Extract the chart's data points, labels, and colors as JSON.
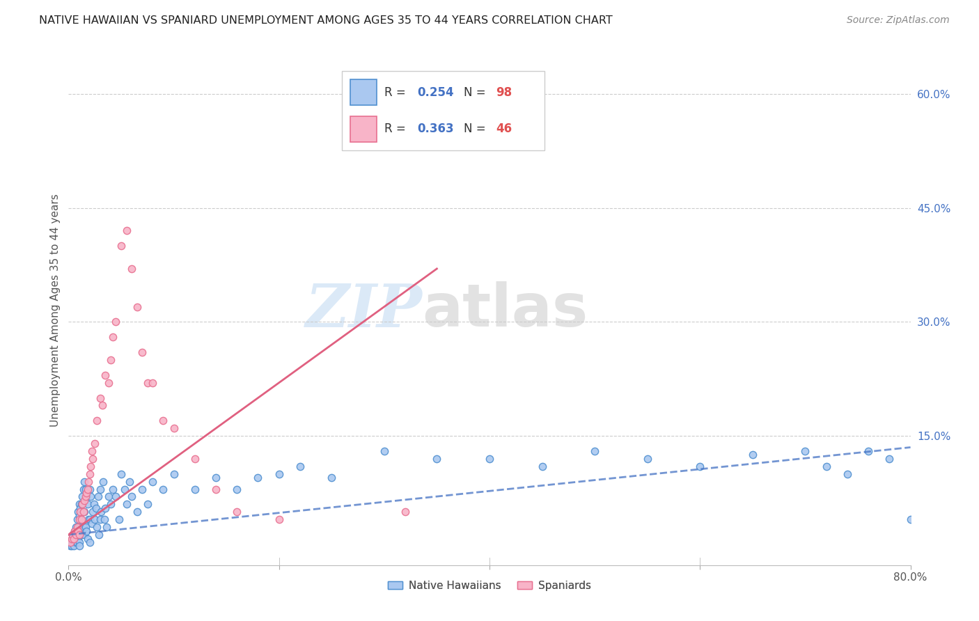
{
  "title": "NATIVE HAWAIIAN VS SPANIARD UNEMPLOYMENT AMONG AGES 35 TO 44 YEARS CORRELATION CHART",
  "source": "Source: ZipAtlas.com",
  "ylabel": "Unemployment Among Ages 35 to 44 years",
  "xlim": [
    0.0,
    0.8
  ],
  "ylim": [
    -0.02,
    0.65
  ],
  "watermark_zip": "ZIP",
  "watermark_atlas": "atlas",
  "legend_R1": "0.254",
  "legend_N1": "98",
  "legend_R2": "0.363",
  "legend_N2": "46",
  "color_hawaiian_fill": "#aac8f0",
  "color_hawaiian_edge": "#5090d0",
  "color_spaniard_fill": "#f8b4c8",
  "color_spaniard_edge": "#e87090",
  "color_line_hawaiian": "#4472c4",
  "color_line_spaniard": "#e06080",
  "background_color": "#ffffff",
  "hawaiian_x": [
    0.002,
    0.003,
    0.003,
    0.004,
    0.005,
    0.005,
    0.005,
    0.006,
    0.006,
    0.007,
    0.007,
    0.007,
    0.008,
    0.008,
    0.008,
    0.009,
    0.009,
    0.009,
    0.01,
    0.01,
    0.01,
    0.01,
    0.01,
    0.01,
    0.011,
    0.011,
    0.012,
    0.012,
    0.013,
    0.013,
    0.014,
    0.014,
    0.015,
    0.015,
    0.015,
    0.016,
    0.016,
    0.017,
    0.017,
    0.018,
    0.018,
    0.019,
    0.02,
    0.02,
    0.02,
    0.021,
    0.022,
    0.023,
    0.024,
    0.025,
    0.026,
    0.027,
    0.028,
    0.029,
    0.03,
    0.03,
    0.031,
    0.033,
    0.034,
    0.035,
    0.036,
    0.038,
    0.04,
    0.042,
    0.045,
    0.048,
    0.05,
    0.053,
    0.055,
    0.058,
    0.06,
    0.065,
    0.07,
    0.075,
    0.08,
    0.09,
    0.1,
    0.12,
    0.14,
    0.16,
    0.18,
    0.2,
    0.22,
    0.25,
    0.3,
    0.35,
    0.4,
    0.45,
    0.5,
    0.55,
    0.6,
    0.65,
    0.7,
    0.72,
    0.74,
    0.76,
    0.78,
    0.8
  ],
  "hawaiian_y": [
    0.005,
    0.01,
    0.005,
    0.015,
    0.02,
    0.01,
    0.005,
    0.025,
    0.015,
    0.03,
    0.02,
    0.01,
    0.04,
    0.025,
    0.01,
    0.05,
    0.03,
    0.015,
    0.06,
    0.045,
    0.03,
    0.02,
    0.01,
    0.005,
    0.055,
    0.02,
    0.06,
    0.02,
    0.07,
    0.025,
    0.08,
    0.03,
    0.09,
    0.05,
    0.02,
    0.08,
    0.03,
    0.07,
    0.025,
    0.06,
    0.015,
    0.04,
    0.08,
    0.04,
    0.01,
    0.07,
    0.035,
    0.05,
    0.06,
    0.04,
    0.055,
    0.03,
    0.07,
    0.02,
    0.08,
    0.04,
    0.05,
    0.09,
    0.04,
    0.055,
    0.03,
    0.07,
    0.06,
    0.08,
    0.07,
    0.04,
    0.1,
    0.08,
    0.06,
    0.09,
    0.07,
    0.05,
    0.08,
    0.06,
    0.09,
    0.08,
    0.1,
    0.08,
    0.095,
    0.08,
    0.095,
    0.1,
    0.11,
    0.095,
    0.13,
    0.12,
    0.12,
    0.11,
    0.13,
    0.12,
    0.11,
    0.125,
    0.13,
    0.11,
    0.1,
    0.13,
    0.12,
    0.04
  ],
  "spaniard_x": [
    0.002,
    0.003,
    0.004,
    0.005,
    0.006,
    0.007,
    0.008,
    0.009,
    0.01,
    0.01,
    0.011,
    0.012,
    0.013,
    0.014,
    0.015,
    0.016,
    0.017,
    0.018,
    0.019,
    0.02,
    0.021,
    0.022,
    0.023,
    0.025,
    0.027,
    0.03,
    0.032,
    0.035,
    0.038,
    0.04,
    0.042,
    0.045,
    0.05,
    0.055,
    0.06,
    0.065,
    0.07,
    0.075,
    0.08,
    0.09,
    0.1,
    0.12,
    0.14,
    0.16,
    0.2,
    0.32
  ],
  "spaniard_y": [
    0.01,
    0.015,
    0.02,
    0.015,
    0.025,
    0.02,
    0.03,
    0.025,
    0.04,
    0.02,
    0.05,
    0.04,
    0.06,
    0.05,
    0.065,
    0.07,
    0.075,
    0.08,
    0.09,
    0.1,
    0.11,
    0.13,
    0.12,
    0.14,
    0.17,
    0.2,
    0.19,
    0.23,
    0.22,
    0.25,
    0.28,
    0.3,
    0.4,
    0.42,
    0.37,
    0.32,
    0.26,
    0.22,
    0.22,
    0.17,
    0.16,
    0.12,
    0.08,
    0.05,
    0.04,
    0.05
  ],
  "trend_hawaiian_x0": 0.0,
  "trend_hawaiian_y0": 0.02,
  "trend_hawaiian_x1": 0.8,
  "trend_hawaiian_y1": 0.135,
  "trend_spaniard_x0": 0.0,
  "trend_spaniard_y0": 0.02,
  "trend_spaniard_x1": 0.35,
  "trend_spaniard_y1": 0.37
}
